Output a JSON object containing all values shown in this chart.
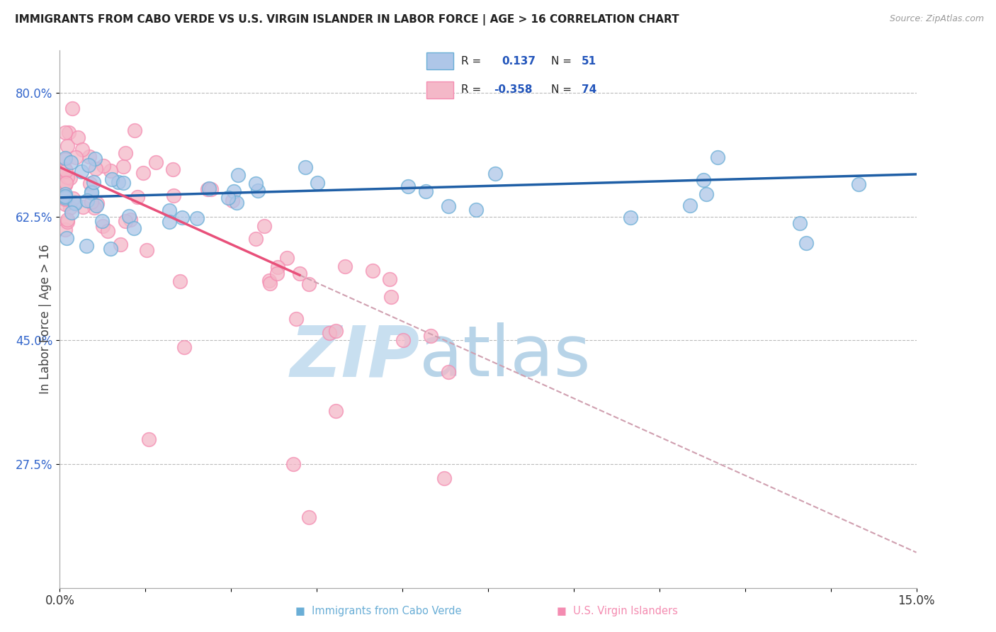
{
  "title": "IMMIGRANTS FROM CABO VERDE VS U.S. VIRGIN ISLANDER IN LABOR FORCE | AGE > 16 CORRELATION CHART",
  "source": "Source: ZipAtlas.com",
  "ylabel": "In Labor Force | Age > 16",
  "x_min": 0.0,
  "x_max": 0.15,
  "y_min": 0.1,
  "y_max": 0.86,
  "x_ticks": [
    0.0,
    0.015,
    0.03,
    0.045,
    0.06,
    0.075,
    0.09,
    0.105,
    0.12,
    0.135,
    0.15
  ],
  "x_tick_labels": [
    "0.0%",
    "",
    "",
    "",
    "",
    "",
    "",
    "",
    "",
    "",
    "15.0%"
  ],
  "y_ticks": [
    0.275,
    0.45,
    0.625,
    0.8
  ],
  "y_tick_labels": [
    "27.5%",
    "45.0%",
    "62.5%",
    "80.0%"
  ],
  "cabo_verde_R": 0.137,
  "cabo_verde_N": 51,
  "virgin_islander_R": -0.358,
  "virgin_islander_N": 74,
  "blue_color": "#6aaed6",
  "pink_color": "#f48cb1",
  "blue_fill_color": "#aec6e8",
  "pink_fill_color": "#f4b8c8",
  "blue_line_color": "#1f5fa6",
  "pink_line_color": "#e8507a",
  "pink_dash_color": "#d0a0b0",
  "watermark_zip": "ZIP",
  "watermark_atlas": "atlas",
  "watermark_color": "#c8dff0",
  "background_color": "#ffffff",
  "grid_color": "#bbbbbb",
  "title_color": "#222222",
  "source_color": "#999999",
  "ytick_color": "#3366cc",
  "ylabel_color": "#444444",
  "legend_label_color": "#222222",
  "legend_value_color": "#2255bb"
}
